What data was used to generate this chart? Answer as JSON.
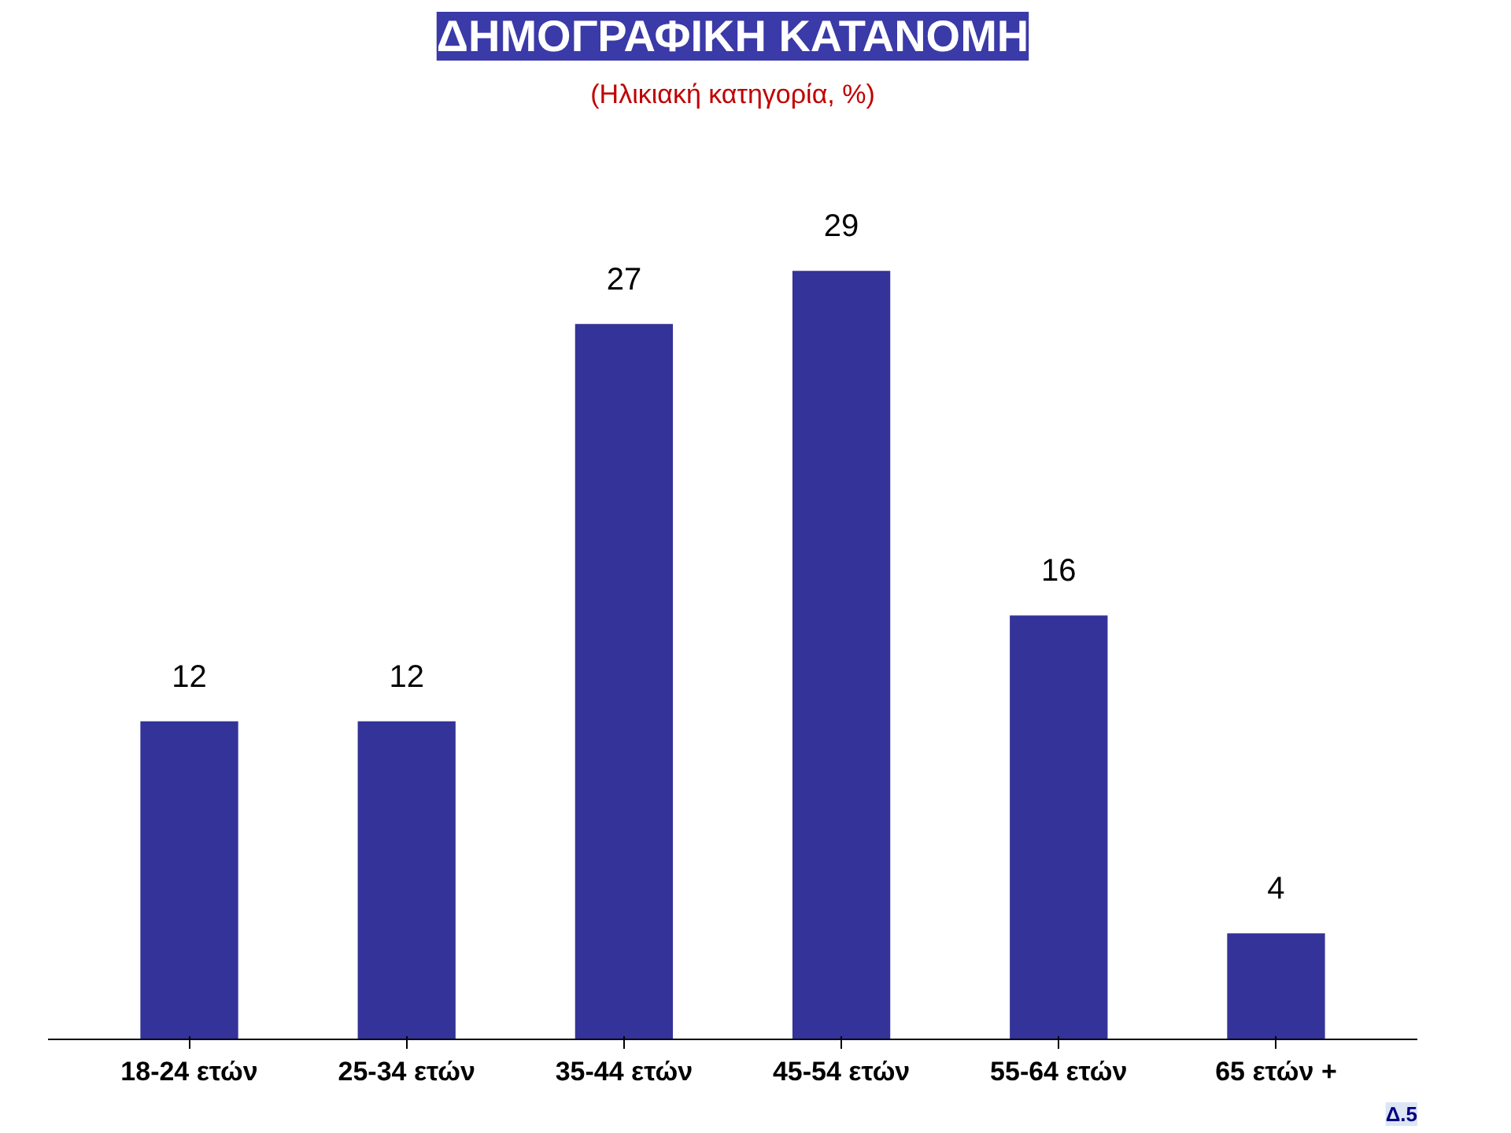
{
  "chart_data": {
    "type": "bar",
    "title": "ΔΗΜΟΓΡΑΦΙΚΗ ΚΑΤΑΝΟΜΗ",
    "subtitle": "(Ηλικιακή κατηγορία, %)",
    "categories": [
      "18-24 ετών",
      "25-34 ετών",
      "35-44 ετών",
      "45-54 ετών",
      "55-64 ετών",
      "65 ετών +"
    ],
    "values": [
      12,
      12,
      27,
      29,
      16,
      4
    ],
    "color": "#333399",
    "data_labels": true,
    "grid": false,
    "annotations": [
      "Δ.5"
    ]
  }
}
